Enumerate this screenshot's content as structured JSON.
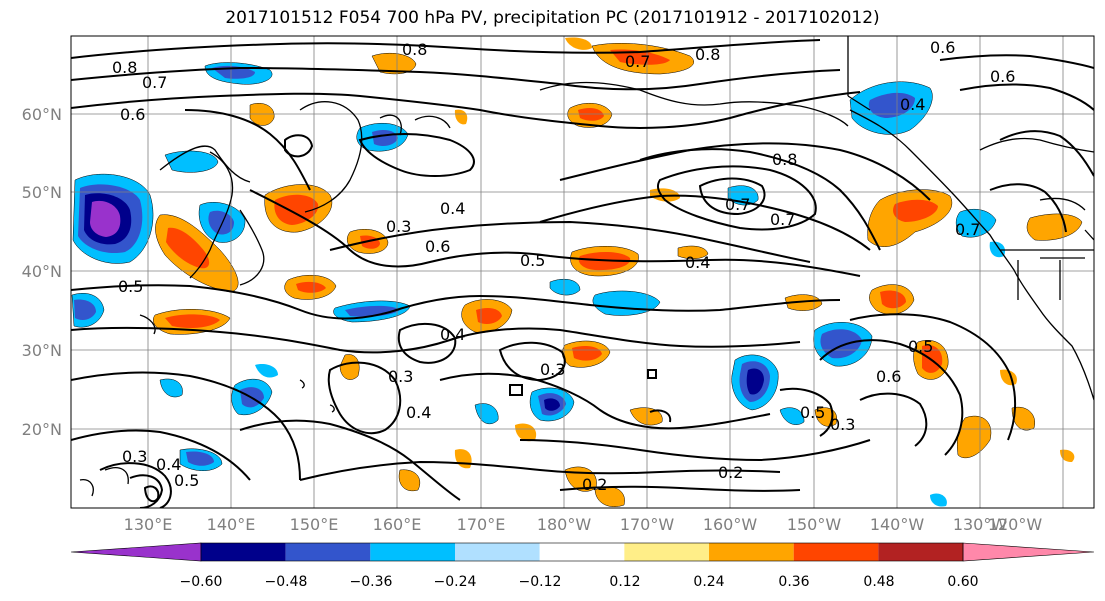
{
  "title": "2017101512 F054 700 hPa PV, precipitation PC (2017101912 - 2017102012)",
  "map": {
    "lat_labels": [
      "60°N",
      "50°N",
      "40°N",
      "30°N",
      "20°N"
    ],
    "lon_labels": [
      "130°E",
      "140°E",
      "150°E",
      "160°E",
      "170°E",
      "180°W",
      "170°W",
      "160°W",
      "150°W",
      "140°W",
      "130°W",
      "120°W"
    ],
    "contour_labels": [
      {
        "text": "0.8",
        "anchor": "nw-pacific"
      },
      {
        "text": "0.7",
        "anchor": "nw-pacific"
      },
      {
        "text": "0.6",
        "anchor": "nw-pacific"
      },
      {
        "text": "0.8",
        "anchor": "bering"
      },
      {
        "text": "0.8",
        "anchor": "bering"
      },
      {
        "text": "0.7",
        "anchor": "bering"
      },
      {
        "text": "0.6",
        "anchor": "canada"
      },
      {
        "text": "0.6",
        "anchor": "canada"
      },
      {
        "text": "0.4",
        "anchor": "gulf-alaska"
      },
      {
        "text": "0.7",
        "anchor": "gulf-alaska"
      },
      {
        "text": "0.8",
        "anchor": "gulf-alaska"
      },
      {
        "text": "0.7",
        "anchor": "gulf-alaska"
      },
      {
        "text": "0.7",
        "anchor": "canada"
      },
      {
        "text": "0.4",
        "anchor": "central"
      },
      {
        "text": "0.3",
        "anchor": "central"
      },
      {
        "text": "0.6",
        "anchor": "central"
      },
      {
        "text": "0.5",
        "anchor": "central"
      },
      {
        "text": "0.4",
        "anchor": "central"
      },
      {
        "text": "0.5",
        "anchor": "japan"
      },
      {
        "text": "0.4",
        "anchor": "subtropics"
      },
      {
        "text": "0.3",
        "anchor": "subtropics"
      },
      {
        "text": "0.3",
        "anchor": "subtropics"
      },
      {
        "text": "0.4",
        "anchor": "subtropics"
      },
      {
        "text": "0.5",
        "anchor": "east"
      },
      {
        "text": "0.6",
        "anchor": "east"
      },
      {
        "text": "0.5",
        "anchor": "east"
      },
      {
        "text": "0.3",
        "anchor": "east"
      },
      {
        "text": "0.2",
        "anchor": "tropics"
      },
      {
        "text": "0.2",
        "anchor": "tropics"
      },
      {
        "text": "0.3",
        "anchor": "west-tropics"
      },
      {
        "text": "0.4",
        "anchor": "west-tropics"
      },
      {
        "text": "0.5",
        "anchor": "west-tropics"
      }
    ]
  },
  "colorbar": {
    "labels": [
      "−0.60",
      "−0.48",
      "−0.36",
      "−0.24",
      "−0.12",
      "0.12",
      "0.24",
      "0.36",
      "0.48",
      "0.60"
    ],
    "colors": [
      "#9932cc",
      "#00008b",
      "#3355cc",
      "#00bfff",
      "#b0e0ff",
      "#ffffff",
      "#ffee88",
      "#ffa500",
      "#ff4500",
      "#b22222",
      "#ff88aa"
    ]
  }
}
